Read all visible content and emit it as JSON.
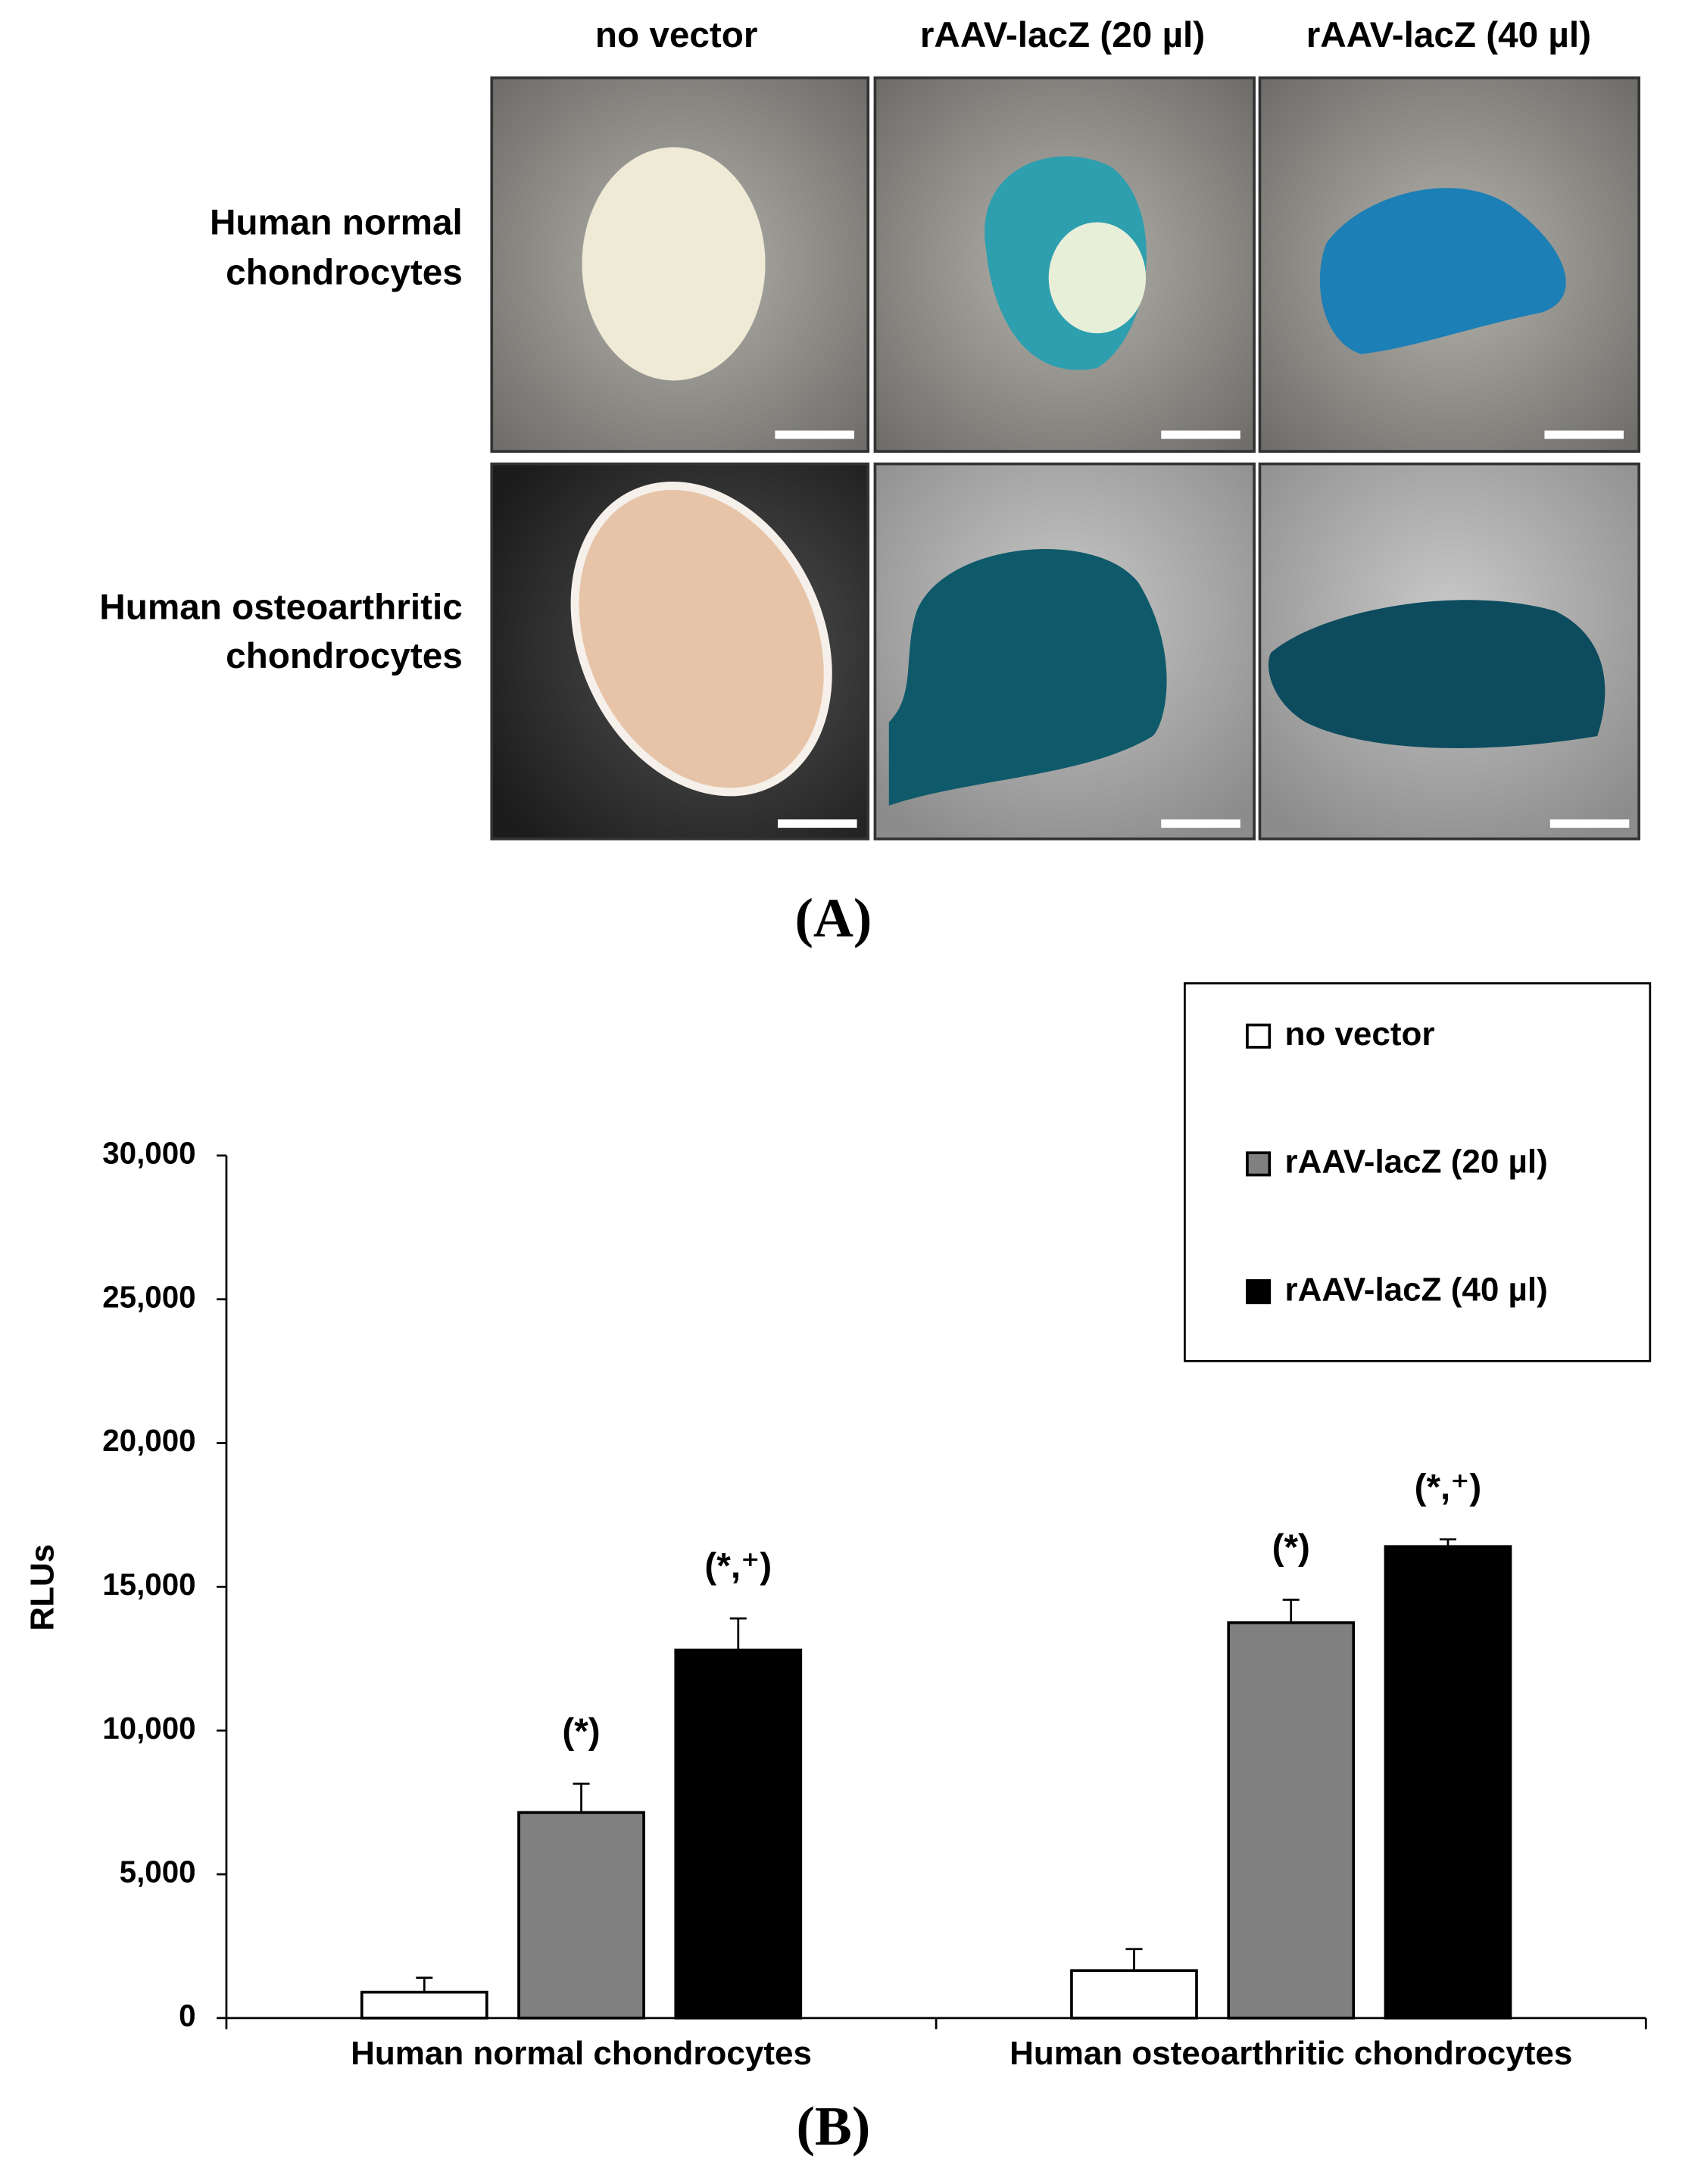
{
  "panel_a": {
    "label": "(A)",
    "columns": [
      "no vector",
      "rAAV-lacZ (20 µl)",
      "rAAV-lacZ (40 µl)"
    ],
    "rows": [
      [
        "Human normal",
        "chondrocytes"
      ],
      [
        "Human osteoarthritic",
        "chondrocytes"
      ]
    ]
  },
  "chart_data": {
    "type": "bar",
    "panel_label": "(B)",
    "y_label": "RLUs",
    "categories": [
      "Human normal chondrocytes",
      "Human osteoarthritic chondrocytes"
    ],
    "series": [
      {
        "name": "no vector",
        "color": "#ffffff",
        "values": [
          900,
          1650
        ],
        "errors": [
          500,
          750
        ]
      },
      {
        "name": "rAAV-lacZ (20 µl)",
        "color": "#808080",
        "values": [
          7150,
          13750
        ],
        "errors": [
          1000,
          800
        ],
        "annotations": [
          "(*)",
          "(*)"
        ]
      },
      {
        "name": "rAAV-lacZ (40 µl)",
        "color": "#000000",
        "values": [
          12800,
          16400
        ],
        "errors": [
          1100,
          250
        ],
        "annotations": [
          "(*,⁺)",
          "(*,⁺)"
        ]
      }
    ],
    "ylim": [
      0,
      30000
    ],
    "yticks": [
      0,
      {
        "value": 5000,
        "label": "5,000"
      },
      {
        "value": 10000,
        "label": "10,000"
      },
      {
        "value": 15000,
        "label": "15,000"
      },
      {
        "value": 20000,
        "label": "20,000"
      },
      {
        "value": 25000,
        "label": "25,000"
      },
      {
        "value": 30000,
        "label": "30,000"
      }
    ],
    "legend": "upper right"
  }
}
